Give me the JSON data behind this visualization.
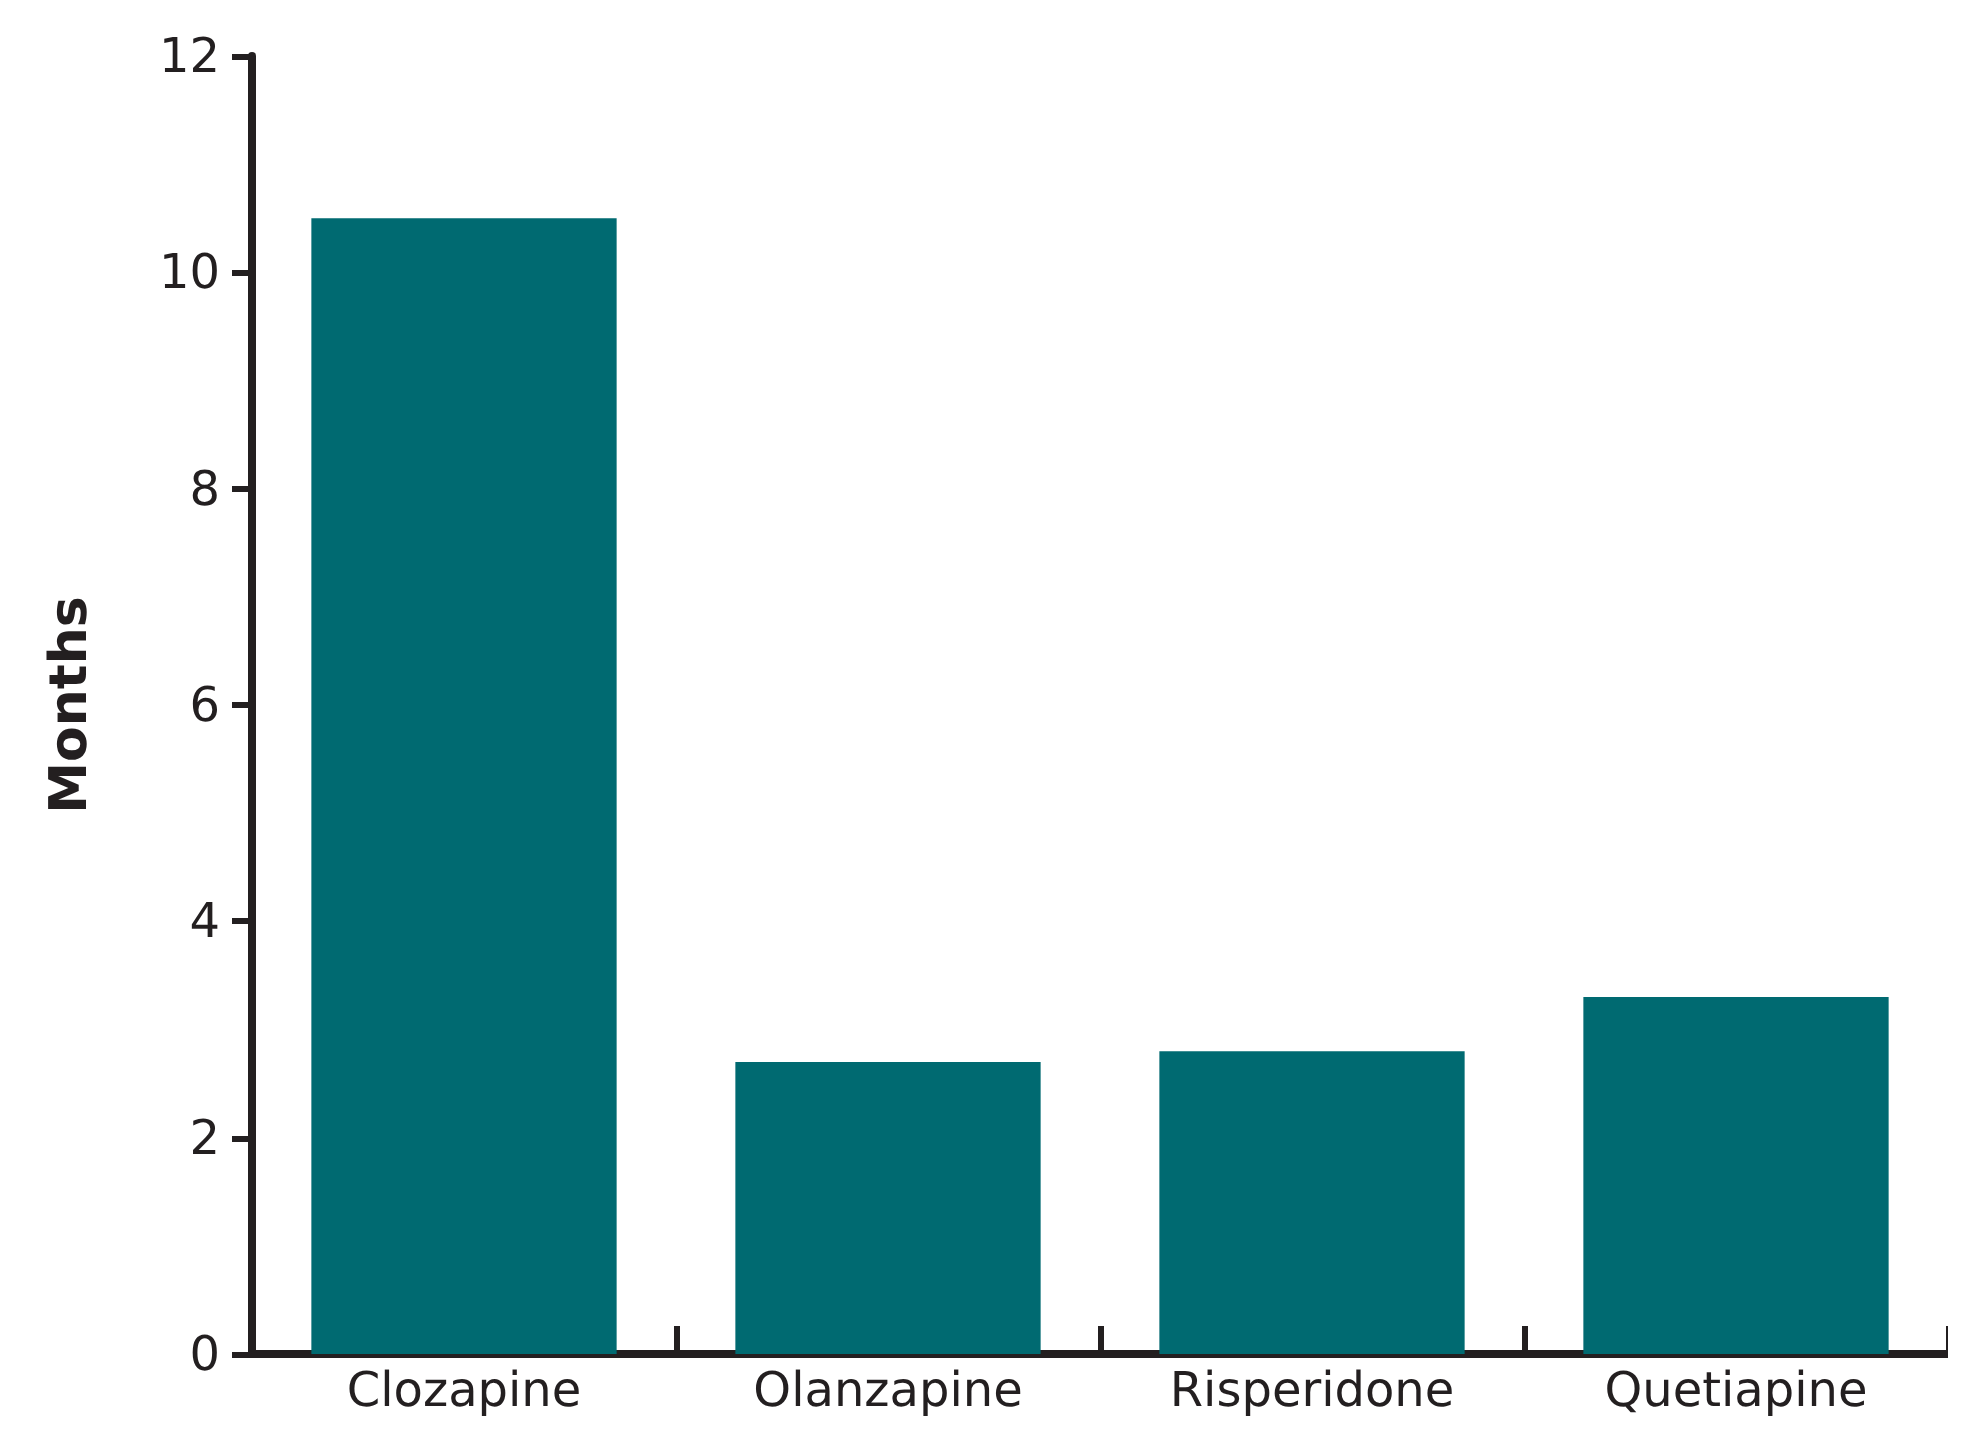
{
  "chart_data": {
    "type": "bar",
    "ylabel": "Months",
    "categories": [
      "Clozapine",
      "Olanzapine",
      "Risperidone",
      "Quetiapine"
    ],
    "values": [
      10.5,
      2.7,
      2.8,
      3.3
    ],
    "color": "#006a71",
    "ylim": [
      0,
      12
    ],
    "yticks": [
      0,
      2,
      4,
      6,
      8,
      10,
      12
    ],
    "grid": false
  }
}
